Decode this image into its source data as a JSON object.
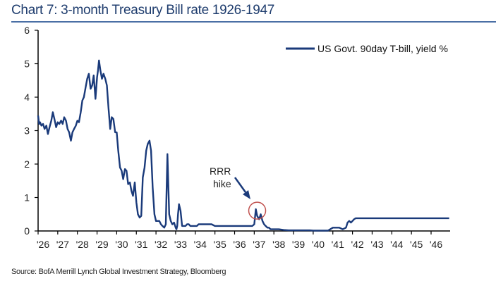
{
  "title": "Chart 7: 3-month Treasury Bill rate 1926-1947",
  "source": "Source: BofA Merrill Lynch Global Investment Strategy, Bloomberg",
  "colors": {
    "line": "#1a3a7a",
    "title": "#1f3d6e",
    "circle": "#c0504d",
    "arrow": "#1a3a7a"
  },
  "chart_data": {
    "type": "line",
    "title": "Chart 7: 3-month Treasury Bill rate 1926-1947",
    "xlabel": "",
    "ylabel": "",
    "xlim": [
      1926,
      1947
    ],
    "ylim": [
      0,
      6
    ],
    "yticks": [
      0,
      1,
      2,
      3,
      4,
      5,
      6
    ],
    "xticks": [
      1926,
      1927,
      1928,
      1929,
      1930,
      1931,
      1932,
      1933,
      1934,
      1935,
      1936,
      1937,
      1938,
      1939,
      1940,
      1941,
      1942,
      1943,
      1944,
      1945,
      1946
    ],
    "xtick_labels": [
      "'26",
      "'27",
      "'28",
      "'29",
      "'30",
      "'31",
      "'32",
      "'33",
      "'34",
      "'35",
      "'36",
      "'37",
      "'38",
      "'39",
      "'40",
      "'41",
      "'42",
      "'43",
      "'44",
      "'45",
      "'46"
    ],
    "grid": false,
    "legend": {
      "position": "top-right",
      "entries": [
        "US Govt. 90day T-bill, yield %"
      ]
    },
    "annotations": [
      {
        "text_lines": [
          "RRR",
          "hike"
        ],
        "x": 1937.15,
        "y": 0.65,
        "marker": "circle"
      }
    ],
    "series": [
      {
        "name": "US Govt. 90day T-bill, yield %",
        "x": [
          1926.0,
          1926.05,
          1926.1,
          1926.17,
          1926.25,
          1926.33,
          1926.42,
          1926.5,
          1926.58,
          1926.67,
          1926.75,
          1926.83,
          1926.92,
          1927.0,
          1927.08,
          1927.17,
          1927.25,
          1927.33,
          1927.42,
          1927.5,
          1927.58,
          1927.67,
          1927.75,
          1927.83,
          1927.92,
          1928.0,
          1928.08,
          1928.17,
          1928.25,
          1928.33,
          1928.42,
          1928.5,
          1928.58,
          1928.67,
          1928.75,
          1928.83,
          1928.92,
          1929.0,
          1929.05,
          1929.1,
          1929.17,
          1929.25,
          1929.33,
          1929.42,
          1929.5,
          1929.58,
          1929.67,
          1929.75,
          1929.83,
          1929.92,
          1930.0,
          1930.08,
          1930.17,
          1930.25,
          1930.33,
          1930.42,
          1930.5,
          1930.58,
          1930.67,
          1930.75,
          1930.83,
          1930.92,
          1931.0,
          1931.08,
          1931.17,
          1931.25,
          1931.33,
          1931.42,
          1931.5,
          1931.58,
          1931.67,
          1931.75,
          1931.83,
          1931.92,
          1932.0,
          1932.08,
          1932.17,
          1932.25,
          1932.33,
          1932.42,
          1932.5,
          1932.58,
          1932.67,
          1932.75,
          1932.83,
          1932.92,
          1933.0,
          1933.04,
          1933.08,
          1933.12,
          1933.17,
          1933.25,
          1933.33,
          1933.42,
          1933.5,
          1933.58,
          1933.67,
          1933.75,
          1933.83,
          1933.92,
          1934.0,
          1934.08,
          1934.17,
          1934.25,
          1934.33,
          1934.5,
          1934.67,
          1934.83,
          1935.0,
          1935.25,
          1935.5,
          1935.75,
          1936.0,
          1936.25,
          1936.5,
          1936.75,
          1936.9,
          1937.0,
          1937.08,
          1937.15,
          1937.25,
          1937.33,
          1937.42,
          1937.5,
          1937.58,
          1937.67,
          1937.75,
          1937.83,
          1938.0,
          1938.25,
          1938.5,
          1938.75,
          1939.0,
          1939.25,
          1939.5,
          1939.67,
          1939.75,
          1939.83,
          1940.0,
          1940.25,
          1940.5,
          1940.58,
          1940.67,
          1940.75,
          1941.0,
          1941.08,
          1941.17,
          1941.33,
          1941.5,
          1941.67,
          1941.75,
          1941.83,
          1941.92,
          1942.0,
          1942.08,
          1942.17,
          1942.25,
          1942.33,
          1942.42,
          1943.0,
          1944.0,
          1945.0,
          1946.0,
          1946.92
        ],
        "values": [
          3.45,
          3.2,
          3.25,
          3.15,
          3.2,
          3.05,
          3.15,
          2.9,
          3.1,
          3.3,
          3.55,
          3.35,
          3.1,
          3.25,
          3.2,
          3.3,
          3.2,
          3.4,
          3.3,
          3.05,
          2.95,
          2.7,
          2.95,
          3.05,
          3.15,
          3.3,
          3.25,
          3.55,
          3.9,
          4.0,
          4.3,
          4.55,
          4.7,
          4.25,
          4.35,
          4.65,
          3.95,
          4.6,
          4.8,
          5.1,
          4.8,
          4.55,
          4.7,
          4.55,
          4.35,
          3.7,
          3.05,
          3.4,
          3.35,
          2.95,
          2.95,
          2.4,
          1.9,
          1.8,
          1.55,
          1.85,
          1.8,
          1.4,
          1.45,
          1.2,
          1.05,
          1.45,
          0.85,
          0.5,
          0.4,
          0.45,
          1.6,
          1.9,
          2.4,
          2.6,
          2.7,
          2.4,
          1.3,
          0.5,
          0.3,
          0.3,
          0.3,
          0.2,
          0.15,
          0.1,
          0.2,
          2.3,
          0.5,
          0.3,
          0.2,
          0.25,
          0.1,
          0.05,
          0.15,
          0.5,
          0.8,
          0.6,
          0.15,
          0.15,
          0.15,
          0.2,
          0.2,
          0.15,
          0.15,
          0.15,
          0.15,
          0.15,
          0.2,
          0.2,
          0.2,
          0.2,
          0.2,
          0.2,
          0.15,
          0.15,
          0.15,
          0.15,
          0.15,
          0.15,
          0.15,
          0.15,
          0.15,
          0.2,
          0.65,
          0.45,
          0.35,
          0.5,
          0.3,
          0.2,
          0.15,
          0.1,
          0.1,
          0.05,
          0.05,
          0.05,
          0.03,
          0.02,
          0.02,
          0.02,
          0.02,
          0.02,
          0.02,
          0.02,
          0.01,
          0.01,
          0.01,
          0.01,
          0.01,
          0.01,
          0.1,
          0.1,
          0.1,
          0.1,
          0.05,
          0.1,
          0.25,
          0.3,
          0.25,
          0.3,
          0.35,
          0.38,
          0.38,
          0.38,
          0.38,
          0.38,
          0.38,
          0.38,
          0.38,
          0.38
        ]
      }
    ]
  }
}
